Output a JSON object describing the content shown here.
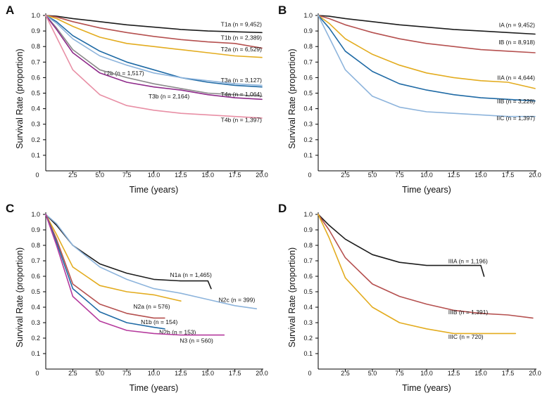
{
  "chart_data": [
    {
      "panel": "A",
      "type": "line",
      "xlabel": "Time (years)",
      "ylabel": "Survival Rate (proportion)",
      "xlim": [
        0,
        20
      ],
      "ylim": [
        0,
        1
      ],
      "xticks": [
        "0",
        "2.5",
        "5.0",
        "7.5",
        "10.0",
        "12.5",
        "15.0",
        "17.5",
        "20.0"
      ],
      "yticks": [
        "0.1",
        "0.2",
        "0.3",
        "0.4",
        "0.5",
        "0.6",
        "0.7",
        "0.8",
        "0.9",
        "1.0"
      ],
      "series": [
        {
          "name": "T1a (n = 9,452)",
          "color": "#1c1c1c",
          "x": [
            0,
            1,
            2.5,
            5,
            7.5,
            10,
            12.5,
            15,
            17.5,
            20
          ],
          "y": [
            1,
            0.995,
            0.98,
            0.96,
            0.94,
            0.925,
            0.91,
            0.9,
            0.895,
            0.89
          ]
        },
        {
          "name": "T1b (n = 2,389)",
          "color": "#b5504f",
          "x": [
            0,
            1,
            2.5,
            5,
            7.5,
            10,
            12.5,
            15,
            17.5,
            20
          ],
          "y": [
            1,
            0.99,
            0.96,
            0.92,
            0.89,
            0.865,
            0.845,
            0.83,
            0.82,
            0.79
          ]
        },
        {
          "name": "T2a (n = 6,529)",
          "color": "#e3ac1f",
          "x": [
            0,
            1,
            2.5,
            5,
            7.5,
            10,
            12.5,
            15,
            17.5,
            20
          ],
          "y": [
            1,
            0.98,
            0.93,
            0.86,
            0.82,
            0.8,
            0.78,
            0.76,
            0.74,
            0.73
          ]
        },
        {
          "name": "T2b (n = 1,517)",
          "color": "#1f6aa5",
          "x": [
            0,
            1,
            2.5,
            5,
            7.5,
            10,
            12.5,
            15,
            17.5,
            20
          ],
          "y": [
            1,
            0.96,
            0.87,
            0.77,
            0.7,
            0.65,
            0.6,
            0.57,
            0.55,
            0.54
          ]
        },
        {
          "name": "T3a (n = 3,127)",
          "color": "#8db4dc",
          "x": [
            0,
            1,
            2.5,
            5,
            7.5,
            10,
            12.5,
            15,
            17.5,
            20
          ],
          "y": [
            1,
            0.95,
            0.85,
            0.74,
            0.68,
            0.63,
            0.6,
            0.58,
            0.56,
            0.55
          ]
        },
        {
          "name": "T3b (n = 2,164)",
          "color": "#8a8a8a",
          "x": [
            0,
            1,
            2.5,
            5,
            7.5,
            10,
            12.5,
            15,
            17.5,
            20
          ],
          "y": [
            1,
            0.92,
            0.78,
            0.65,
            0.6,
            0.56,
            0.53,
            0.5,
            0.49,
            0.48
          ]
        },
        {
          "name": "T4a (n = 1,064)",
          "color": "#8e2a8a",
          "x": [
            0,
            1,
            2.5,
            5,
            7.5,
            10,
            12.5,
            15,
            17.5,
            20
          ],
          "y": [
            1,
            0.91,
            0.76,
            0.63,
            0.57,
            0.54,
            0.52,
            0.49,
            0.47,
            0.46
          ]
        },
        {
          "name": "T4b (n = 1,397)",
          "color": "#e88fa5",
          "x": [
            0,
            1,
            2.5,
            5,
            7.5,
            10,
            12.5,
            15,
            17.5,
            20
          ],
          "y": [
            1,
            0.86,
            0.65,
            0.49,
            0.42,
            0.39,
            0.37,
            0.36,
            0.35,
            0.34
          ]
        }
      ]
    },
    {
      "panel": "B",
      "type": "line",
      "xlabel": "Time (years)",
      "ylabel": "Survival Rate (proportion)",
      "xlim": [
        0,
        20
      ],
      "ylim": [
        0,
        1
      ],
      "xticks": [
        "0",
        "2.5",
        "5.0",
        "7.5",
        "10.0",
        "12.5",
        "15.0",
        "17.5",
        "20.0"
      ],
      "yticks": [
        "0.1",
        "0.2",
        "0.3",
        "0.4",
        "0.5",
        "0.6",
        "0.7",
        "0.8",
        "0.9",
        "1.0"
      ],
      "series": [
        {
          "name": "IA (n = 9,452)",
          "color": "#1c1c1c",
          "x": [
            0,
            1,
            2.5,
            5,
            7.5,
            10,
            12.5,
            15,
            17.5,
            20
          ],
          "y": [
            1,
            0.995,
            0.98,
            0.96,
            0.94,
            0.925,
            0.91,
            0.9,
            0.89,
            0.88
          ]
        },
        {
          "name": "IB (n = 8,918)",
          "color": "#b5504f",
          "x": [
            0,
            1,
            2.5,
            5,
            7.5,
            10,
            12.5,
            15,
            17.5,
            20
          ],
          "y": [
            1,
            0.98,
            0.94,
            0.89,
            0.85,
            0.82,
            0.8,
            0.78,
            0.77,
            0.76
          ]
        },
        {
          "name": "IIA (n = 4,644)",
          "color": "#e3ac1f",
          "x": [
            0,
            1,
            2.5,
            5,
            7.5,
            10,
            12.5,
            15,
            17.5,
            20
          ],
          "y": [
            1,
            0.95,
            0.85,
            0.75,
            0.68,
            0.63,
            0.6,
            0.58,
            0.57,
            0.53
          ]
        },
        {
          "name": "IIB (n = 3,228)",
          "color": "#1f6aa5",
          "x": [
            0,
            1,
            2.5,
            5,
            7.5,
            10,
            12.5,
            15,
            17.5,
            20
          ],
          "y": [
            1,
            0.92,
            0.77,
            0.64,
            0.56,
            0.52,
            0.49,
            0.47,
            0.46,
            0.45
          ]
        },
        {
          "name": "IIC (n = 1,397)",
          "color": "#8db4dc",
          "x": [
            0,
            1,
            2.5,
            5,
            7.5,
            10,
            12.5,
            15,
            17.5,
            20
          ],
          "y": [
            1,
            0.86,
            0.65,
            0.48,
            0.41,
            0.38,
            0.37,
            0.36,
            0.35,
            0.35
          ]
        }
      ]
    },
    {
      "panel": "C",
      "type": "line",
      "xlabel": "Time (years)",
      "ylabel": "Survival Rate (proportion)",
      "xlim": [
        0,
        20
      ],
      "ylim": [
        0,
        1
      ],
      "xticks": [
        "0",
        "2.5",
        "5.0",
        "7.5",
        "10.0",
        "12.5",
        "15.0",
        "17.5",
        "20.0"
      ],
      "yticks": [
        "0.1",
        "0.2",
        "0.3",
        "0.4",
        "0.5",
        "0.6",
        "0.7",
        "0.8",
        "0.9",
        "1.0"
      ],
      "series": [
        {
          "name": "N1a (n = 1,465)",
          "color": "#1c1c1c",
          "x": [
            0,
            1,
            2.5,
            5,
            7.5,
            10,
            12.5,
            15,
            15.3
          ],
          "y": [
            1,
            0.93,
            0.8,
            0.68,
            0.62,
            0.58,
            0.57,
            0.57,
            0.52
          ]
        },
        {
          "name": "N2c (n = 399)",
          "color": "#8db4dc",
          "x": [
            0,
            1,
            2.5,
            5,
            7.5,
            10,
            12.5,
            15,
            17.5,
            19.5
          ],
          "y": [
            1,
            0.94,
            0.8,
            0.66,
            0.58,
            0.52,
            0.49,
            0.45,
            0.41,
            0.39
          ]
        },
        {
          "name": "N2a (n = 576)",
          "color": "#e3ac1f",
          "x": [
            0,
            1,
            2.5,
            5,
            7.5,
            10,
            12.5
          ],
          "y": [
            1,
            0.87,
            0.66,
            0.54,
            0.5,
            0.48,
            0.44
          ]
        },
        {
          "name": "N1b (n = 154)",
          "color": "#b5504f",
          "x": [
            0,
            1,
            2.5,
            5,
            7.5,
            10,
            11
          ],
          "y": [
            1,
            0.84,
            0.55,
            0.42,
            0.36,
            0.33,
            0.33
          ]
        },
        {
          "name": "N2b (n = 153)",
          "color": "#1f6aa5",
          "x": [
            0,
            1,
            2.5,
            5,
            7.5,
            10,
            11
          ],
          "y": [
            1,
            0.82,
            0.52,
            0.37,
            0.3,
            0.27,
            0.26
          ]
        },
        {
          "name": "N3 (n = 560)",
          "color": "#b53a9d",
          "x": [
            0,
            1,
            2.5,
            5,
            7.5,
            10,
            12.5,
            15,
            16.5
          ],
          "y": [
            1,
            0.8,
            0.47,
            0.31,
            0.25,
            0.23,
            0.22,
            0.22,
            0.22
          ]
        }
      ]
    },
    {
      "panel": "D",
      "type": "line",
      "xlabel": "Time (years)",
      "ylabel": "Survival Rate (proportion)",
      "xlim": [
        0,
        20
      ],
      "ylim": [
        0,
        1
      ],
      "xticks": [
        "0",
        "2.5",
        "5.0",
        "7.5",
        "10.0",
        "12.5",
        "15.0",
        "17.5",
        "20.0"
      ],
      "yticks": [
        "0.1",
        "0.2",
        "0.3",
        "0.4",
        "0.5",
        "0.6",
        "0.7",
        "0.8",
        "0.9",
        "1.0"
      ],
      "series": [
        {
          "name": "IIIA (n = 1,196)",
          "color": "#1c1c1c",
          "x": [
            0,
            1,
            2.5,
            5,
            7.5,
            10,
            12.5,
            15,
            15.3
          ],
          "y": [
            1,
            0.93,
            0.84,
            0.74,
            0.69,
            0.67,
            0.67,
            0.67,
            0.6
          ]
        },
        {
          "name": "IIIB (n = 1,391)",
          "color": "#b5504f",
          "x": [
            0,
            1,
            2.5,
            5,
            7.5,
            10,
            12.5,
            15,
            17.5,
            19.8
          ],
          "y": [
            1,
            0.9,
            0.72,
            0.55,
            0.47,
            0.42,
            0.38,
            0.36,
            0.35,
            0.33
          ]
        },
        {
          "name": "IIIC (n = 720)",
          "color": "#e3ac1f",
          "x": [
            0,
            1,
            2.5,
            5,
            7.5,
            10,
            12.5,
            15,
            17.5,
            18.2
          ],
          "y": [
            1,
            0.85,
            0.59,
            0.4,
            0.3,
            0.26,
            0.23,
            0.23,
            0.23,
            0.23
          ]
        }
      ]
    }
  ]
}
